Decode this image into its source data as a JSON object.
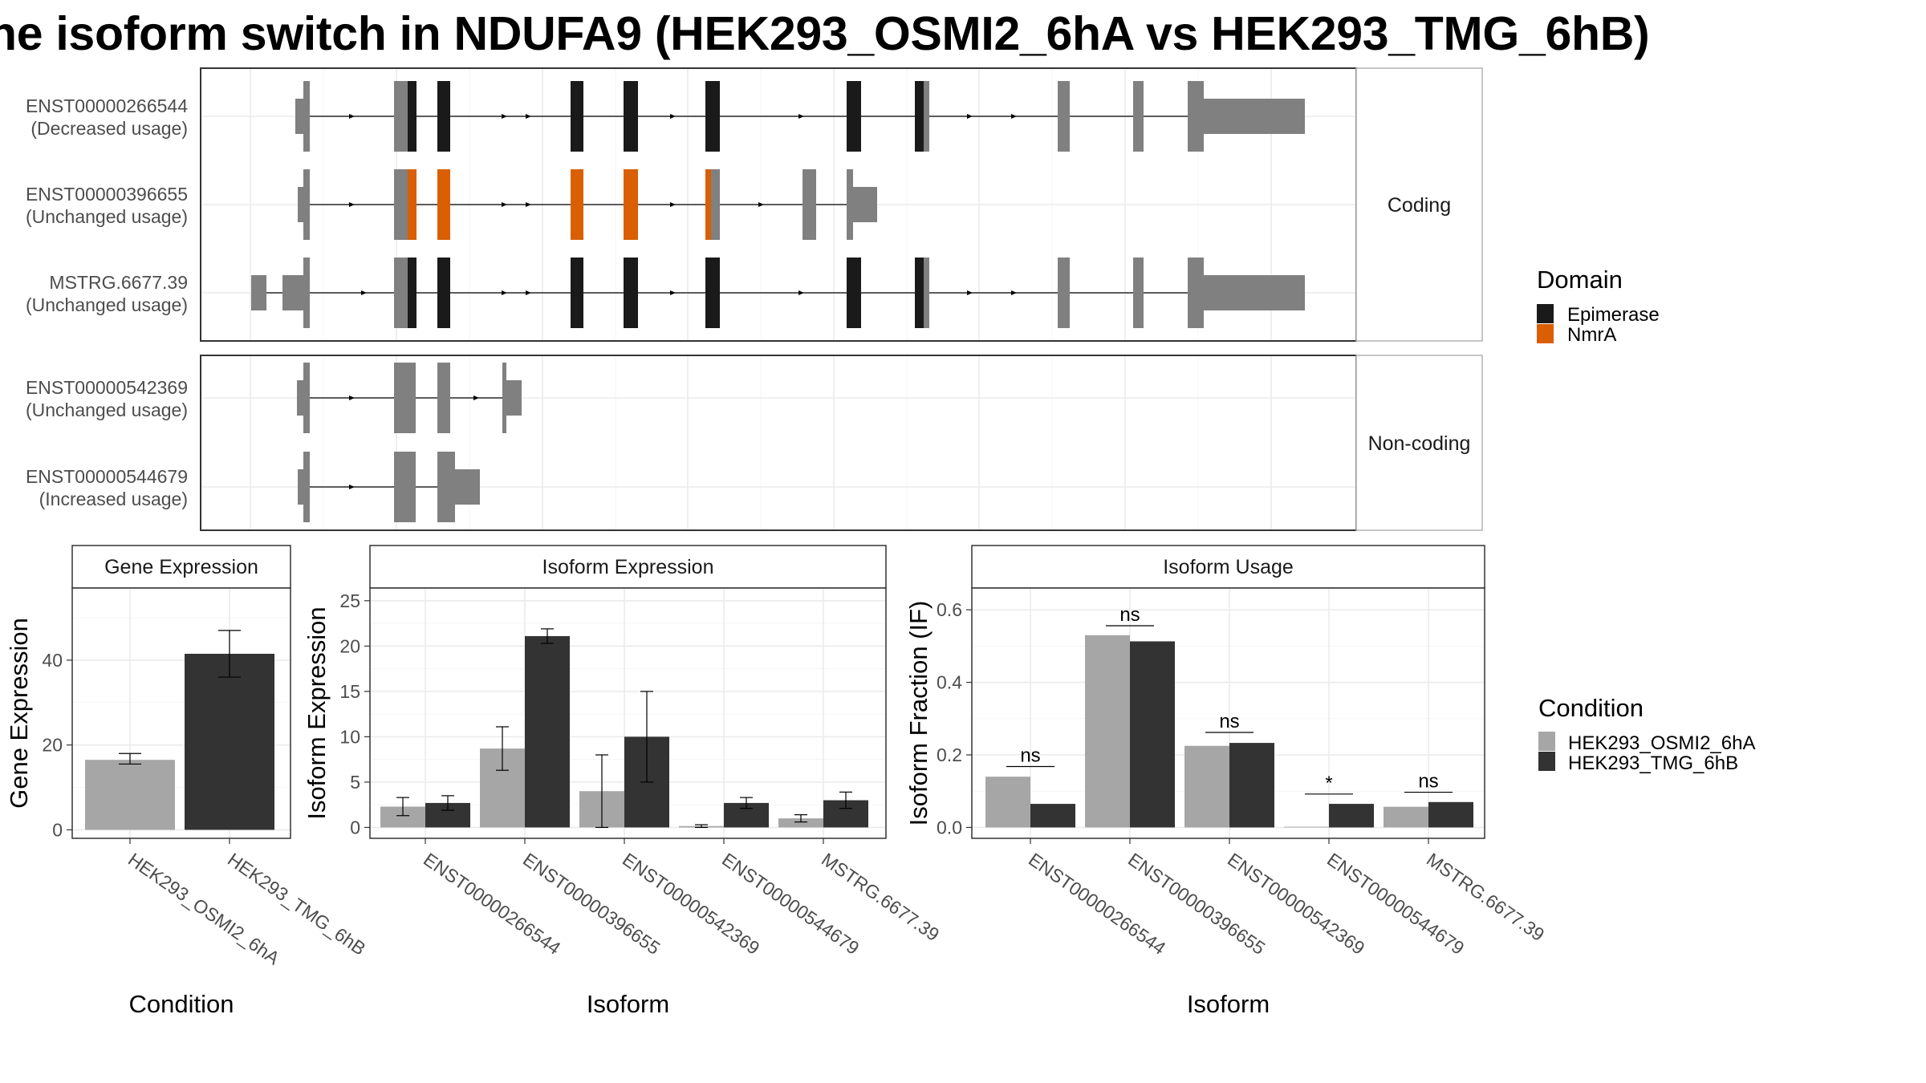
{
  "title": "he isoform switch in NDUFA9 (HEK293_OSMI2_6hA vs HEK293_TMG_6hB)",
  "colors": {
    "exon_default": "#808080",
    "epimerase": "#1a1a1a",
    "nmra": "#d95f02",
    "condition_a": "#a6a6a6",
    "condition_b": "#333333",
    "panel_border": "#333333",
    "strip_bg": "#ffffff",
    "grid": "#ebebeb"
  },
  "structure": {
    "facets": [
      {
        "label": "Coding",
        "isoforms": [
          {
            "id": "ENST00000266544",
            "usage": "(Decreased usage)"
          },
          {
            "id": "ENST00000396655",
            "usage": "(Unchanged usage)"
          },
          {
            "id": "MSTRG.6677.39",
            "usage": "(Unchanged usage)"
          }
        ]
      },
      {
        "label": "Non-coding",
        "isoforms": [
          {
            "id": "ENST00000542369",
            "usage": "(Unchanged usage)"
          },
          {
            "id": "ENST00000544679",
            "usage": "(Increased usage)"
          }
        ]
      }
    ],
    "legend": {
      "title": "Domain",
      "items": [
        {
          "label": "Epimerase",
          "color": "#1a1a1a"
        },
        {
          "label": "NmrA",
          "color": "#d95f02"
        }
      ]
    }
  },
  "chart_data": [
    {
      "type": "bar",
      "panel": "Gene Expression",
      "title": "Gene Expression",
      "xlabel": "Condition",
      "ylabel": "Gene Expression",
      "categories": [
        "HEK293_OSMI2_6hA",
        "HEK293_TMG_6hB"
      ],
      "values": [
        16.5,
        41.5
      ],
      "error_low": [
        15.5,
        36.0
      ],
      "error_high": [
        18.0,
        47.0
      ],
      "ylim": [
        -2,
        57
      ],
      "yticks": [
        0,
        20,
        40
      ]
    },
    {
      "type": "bar",
      "panel": "Isoform Expression",
      "title": "Isoform Expression",
      "xlabel": "Isoform",
      "ylabel": "Isoform Expression",
      "categories": [
        "ENST00000266544",
        "ENST00000396655",
        "ENST00000542369",
        "ENST00000544679",
        "MSTRG.6677.39"
      ],
      "series": [
        {
          "name": "HEK293_OSMI2_6hA",
          "values": [
            2.3,
            8.7,
            4.0,
            0.15,
            1.0
          ],
          "error_low": [
            1.3,
            6.3,
            0.0,
            0.0,
            0.6
          ],
          "error_high": [
            3.3,
            11.1,
            8.0,
            0.3,
            1.4
          ]
        },
        {
          "name": "HEK293_TMG_6hB",
          "values": [
            2.7,
            21.1,
            10.0,
            2.7,
            3.0
          ],
          "error_low": [
            1.9,
            20.3,
            5.0,
            2.1,
            2.1
          ],
          "error_high": [
            3.5,
            21.9,
            15.0,
            3.3,
            3.9
          ]
        }
      ],
      "ylim": [
        -1.2,
        26.4
      ],
      "yticks": [
        0,
        5,
        10,
        15,
        20,
        25
      ]
    },
    {
      "type": "bar",
      "panel": "Isoform Usage",
      "title": "Isoform Usage",
      "xlabel": "Isoform",
      "ylabel": "Isoform Fraction (IF)",
      "categories": [
        "ENST00000266544",
        "ENST00000396655",
        "ENST00000542369",
        "ENST00000544679",
        "MSTRG.6677.39"
      ],
      "series": [
        {
          "name": "HEK293_OSMI2_6hA",
          "values": [
            0.14,
            0.53,
            0.225,
            0.002,
            0.057
          ]
        },
        {
          "name": "HEK293_TMG_6hB",
          "values": [
            0.065,
            0.513,
            0.233,
            0.065,
            0.07
          ]
        }
      ],
      "significance": [
        "ns",
        "ns",
        "ns",
        "*",
        "ns"
      ],
      "significance_y": [
        0.168,
        0.556,
        0.262,
        0.092,
        0.097
      ],
      "ylim": [
        -0.03,
        0.66
      ],
      "yticks": [
        0.0,
        0.2,
        0.4,
        0.6
      ],
      "ytick_labels": [
        "0.0",
        "0.2",
        "0.4",
        "0.6"
      ]
    }
  ],
  "condition_legend": {
    "title": "Condition",
    "items": [
      {
        "label": "HEK293_OSMI2_6hA",
        "color": "#a6a6a6"
      },
      {
        "label": "HEK293_TMG_6hB",
        "color": "#333333"
      }
    ]
  }
}
